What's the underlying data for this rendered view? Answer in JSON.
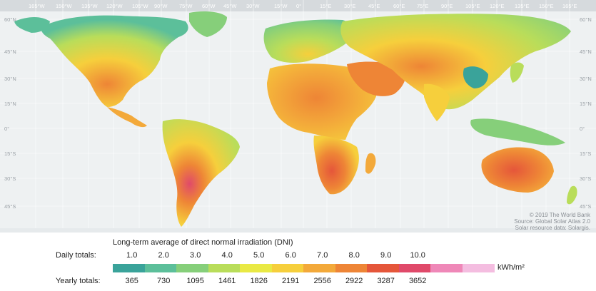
{
  "map": {
    "longitude_labels": [
      "165°W",
      "150°W",
      "135°W",
      "120°W",
      "105°W",
      "90°W",
      "75°W",
      "60°W",
      "45°W",
      "30°W",
      "15°W",
      "0°",
      "15°E",
      "30°E",
      "45°E",
      "60°E",
      "75°E",
      "90°E",
      "105°E",
      "120°E",
      "135°E",
      "150°E",
      "165°E"
    ],
    "latitude_labels": [
      "60°N",
      "45°N",
      "30°N",
      "15°N",
      "0°",
      "15°S",
      "30°S",
      "45°S"
    ],
    "credits": [
      "© 2019 The World Bank",
      "Source: Global Solar Atlas 2.0",
      "Solar resource data: Solargis."
    ]
  },
  "legend": {
    "title": "Long-term average of direct normal irradiation (DNI)",
    "daily_label": "Daily totals:",
    "yearly_label": "Yearly totals:",
    "daily_values": [
      "1.0",
      "2.0",
      "3.0",
      "4.0",
      "5.0",
      "6.0",
      "7.0",
      "8.0",
      "9.0",
      "10.0"
    ],
    "yearly_values": [
      "365",
      "730",
      "1095",
      "1461",
      "1826",
      "2191",
      "2556",
      "2922",
      "3287",
      "3652"
    ],
    "unit": "kWh/m²",
    "colors": [
      "#3aa39a",
      "#5cbf9a",
      "#86cf7a",
      "#b9dd5a",
      "#e9e944",
      "#f6cf3c",
      "#f3a93a",
      "#ee8536",
      "#e5563a",
      "#e04a6a",
      "#ef88b8",
      "#f4bde0"
    ]
  }
}
